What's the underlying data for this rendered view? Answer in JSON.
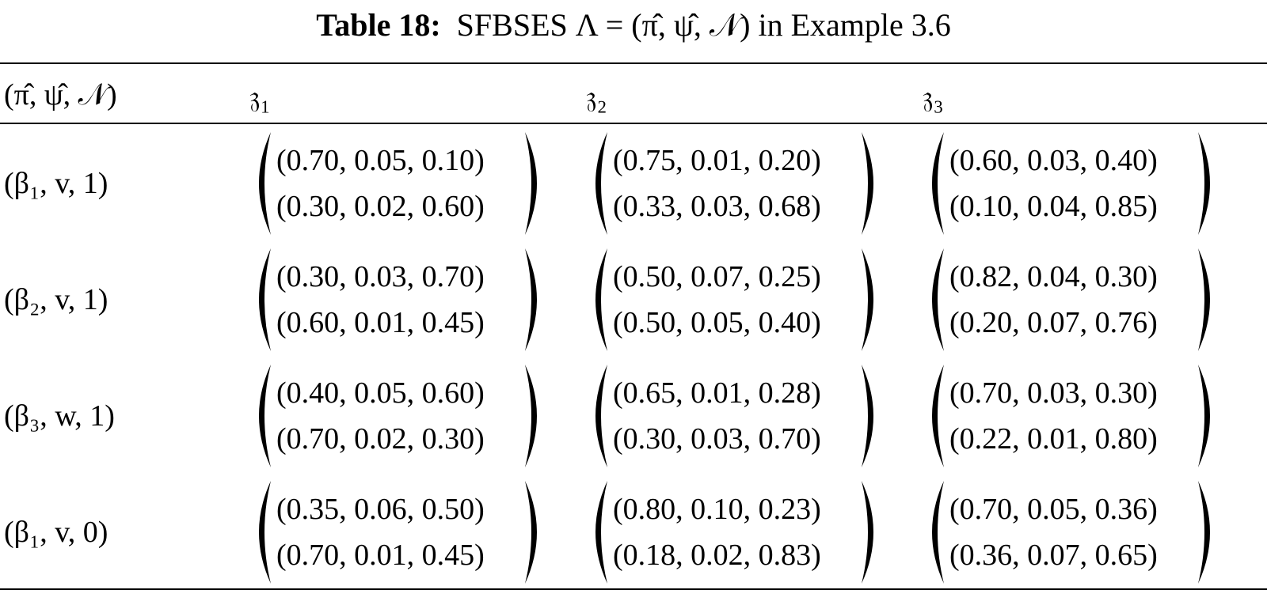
{
  "caption": {
    "label": "Table 18:",
    "text": "SFBSES Λ = (π̂, ψ̂, 𝒩) in Example 3.6"
  },
  "table": {
    "header": [
      "(π̂, ψ̂, 𝒩)",
      "𝔷₁",
      "𝔷₂",
      "𝔷₃"
    ],
    "rows": [
      [
        "(β₁, v, 1)",
        [
          "(0.70, 0.05, 0.10)",
          "(0.30, 0.02, 0.60)"
        ],
        [
          "(0.75, 0.01, 0.20)",
          "(0.33, 0.03, 0.68)"
        ],
        [
          "(0.60, 0.03, 0.40)",
          "(0.10, 0.04, 0.85)"
        ]
      ],
      [
        "(β₂, v, 1)",
        [
          "(0.30, 0.03, 0.70)",
          "(0.60, 0.01, 0.45)"
        ],
        [
          "(0.50, 0.07, 0.25)",
          "(0.50, 0.05, 0.40)"
        ],
        [
          "(0.82, 0.04, 0.30)",
          "(0.20, 0.07, 0.76)"
        ]
      ],
      [
        "(β₃, w, 1)",
        [
          "(0.40, 0.05, 0.60)",
          "(0.70, 0.02, 0.30)"
        ],
        [
          "(0.65, 0.01, 0.28)",
          "(0.30, 0.03, 0.70)"
        ],
        [
          "(0.70, 0.03, 0.30)",
          "(0.22, 0.01, 0.80)"
        ]
      ],
      [
        "(β₁, v, 0)",
        [
          "(0.35, 0.06, 0.50)",
          "(0.70, 0.01, 0.45)"
        ],
        [
          "(0.80, 0.10, 0.23)",
          "(0.18, 0.02, 0.83)"
        ],
        [
          "(0.70, 0.05, 0.36)",
          "(0.36, 0.07, 0.65)"
        ]
      ]
    ]
  }
}
